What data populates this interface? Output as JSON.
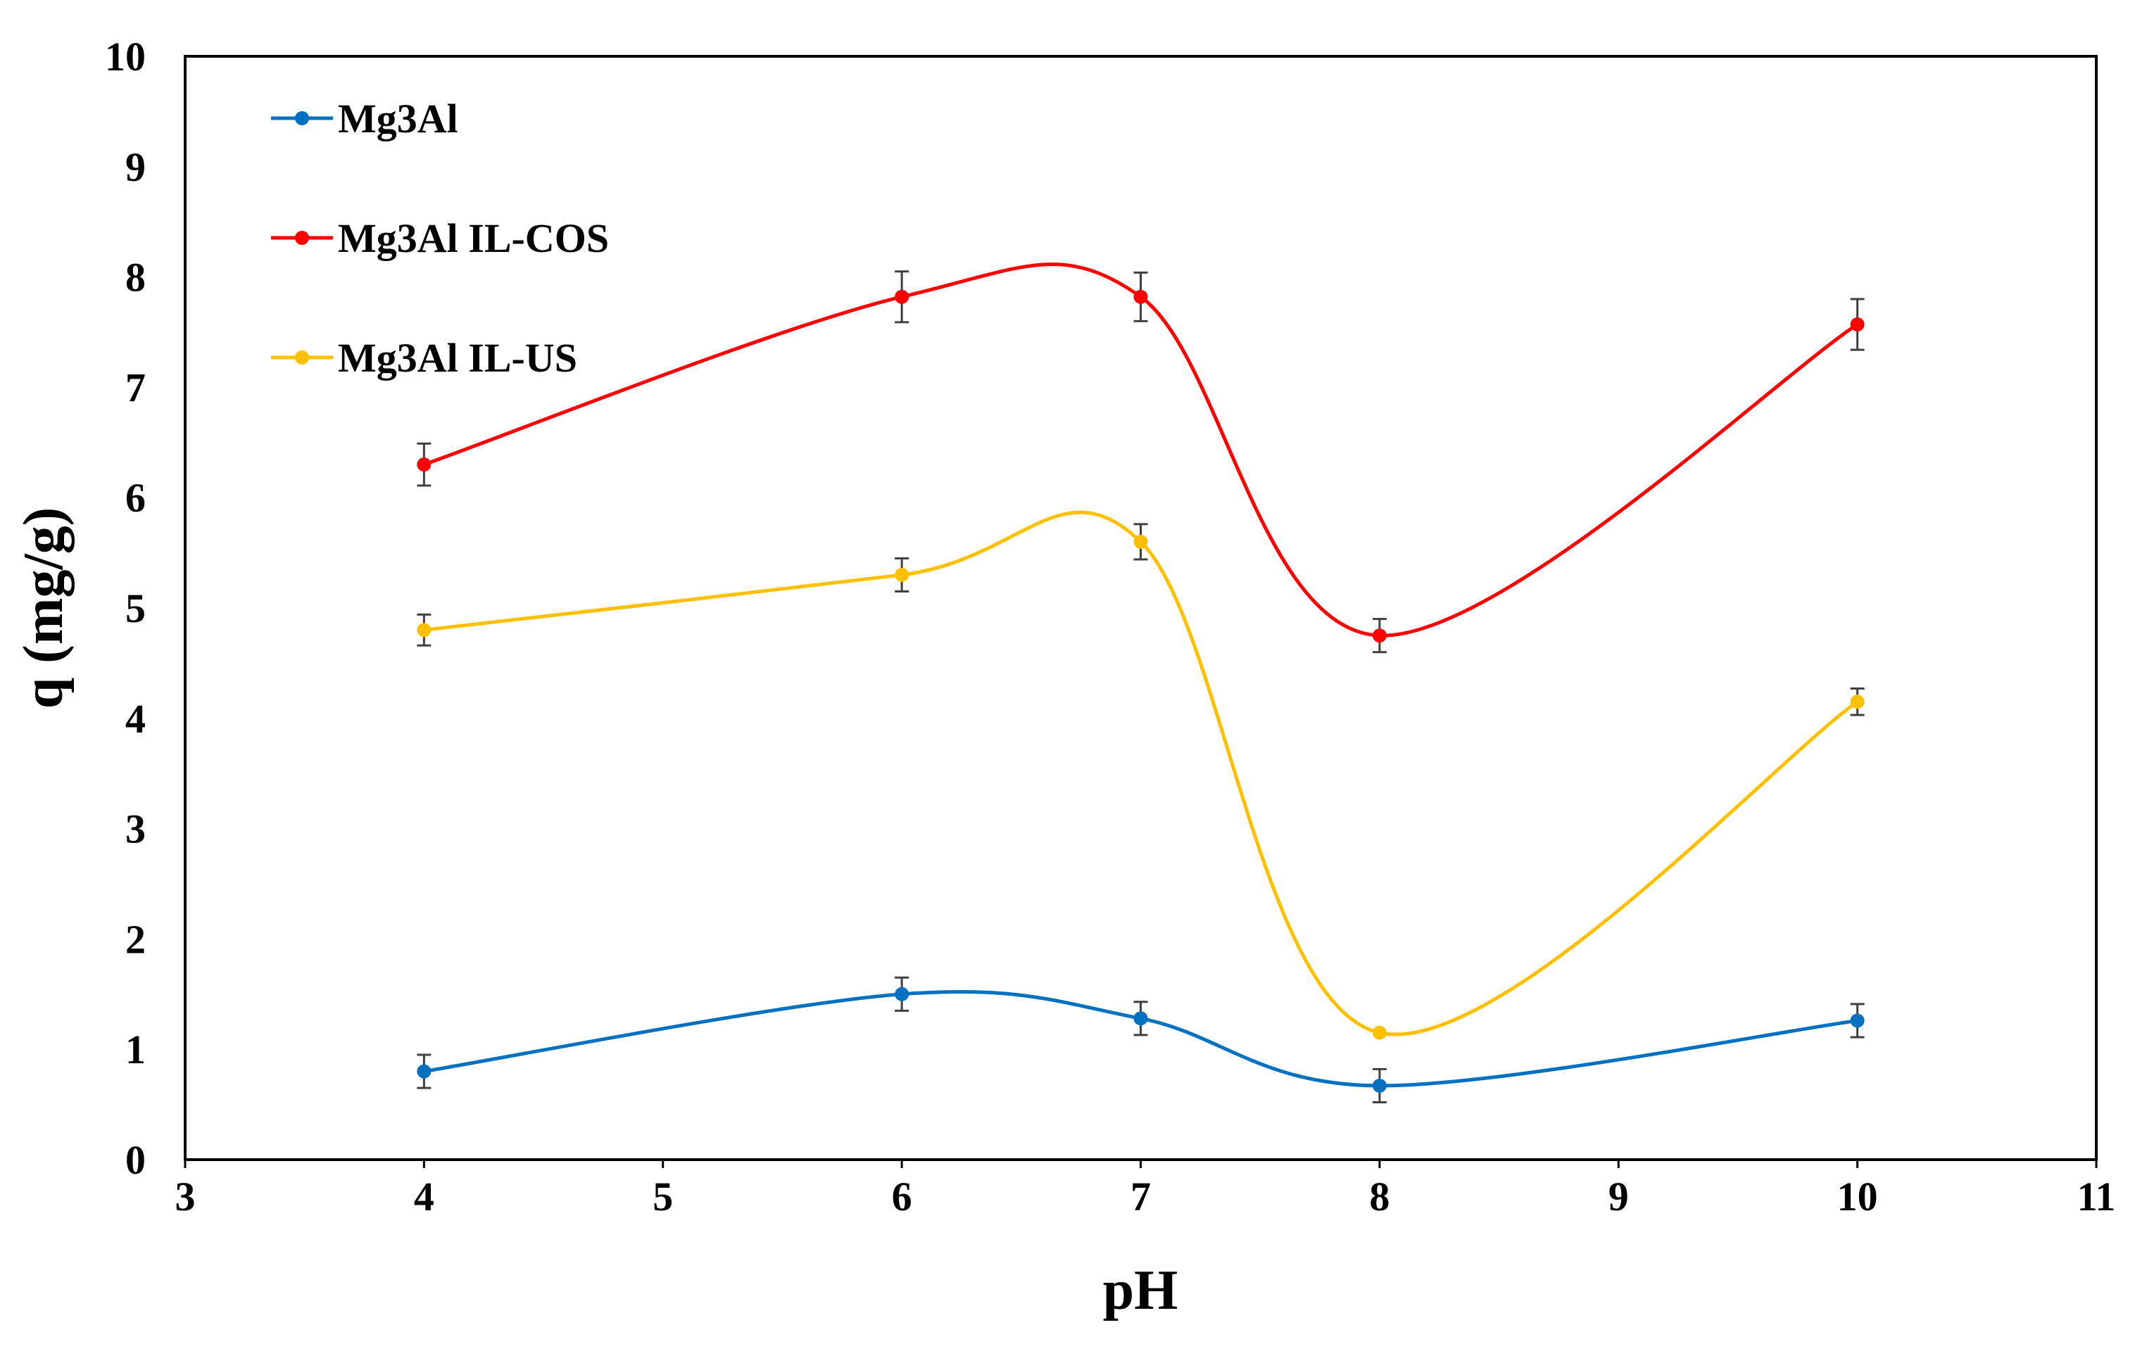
{
  "chart_data": {
    "type": "line",
    "title": "",
    "xlabel": "pH",
    "ylabel": "q (mg/g)",
    "xlim": [
      3,
      11
    ],
    "ylim": [
      0,
      10
    ],
    "xticks": [
      "3",
      "4",
      "5",
      "6",
      "7",
      "8",
      "9",
      "10",
      "11"
    ],
    "yticks": [
      "0",
      "1",
      "2",
      "3",
      "4",
      "5",
      "6",
      "7",
      "8",
      "9",
      "10"
    ],
    "grid": false,
    "legend_position": "top-left",
    "smooth": true,
    "series": [
      {
        "name": "Mg3Al",
        "color": "#0070C0",
        "x": [
          4,
          6,
          7,
          8,
          10
        ],
        "y": [
          0.8,
          1.5,
          1.28,
          0.67,
          1.26
        ],
        "error": [
          0.15,
          0.15,
          0.15,
          0.15,
          0.15
        ]
      },
      {
        "name": "Mg3Al IL-COS",
        "color": "#FF0000",
        "x": [
          4,
          6,
          7,
          8,
          10
        ],
        "y": [
          6.3,
          7.82,
          7.82,
          4.75,
          7.57
        ],
        "error": [
          0.19,
          0.23,
          0.22,
          0.15,
          0.23
        ]
      },
      {
        "name": "Mg3Al IL-US",
        "color": "#FFC000",
        "x": [
          4,
          6,
          7,
          8,
          10
        ],
        "y": [
          4.8,
          5.3,
          5.6,
          1.15,
          4.15
        ],
        "error": [
          0.14,
          0.15,
          0.16,
          0.0,
          0.12
        ]
      }
    ]
  }
}
